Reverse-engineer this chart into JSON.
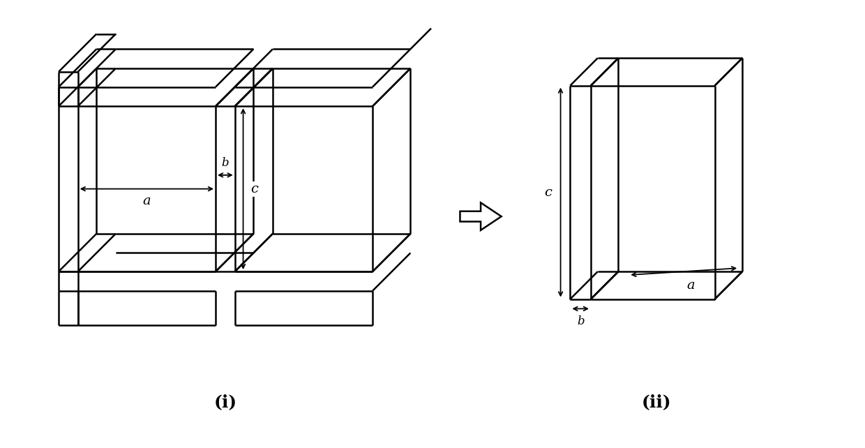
{
  "bg_color": "#ffffff",
  "line_color": "#000000",
  "lw": 1.8,
  "fig_width": 12.4,
  "fig_height": 6.42,
  "label_i": "(i)",
  "label_ii": "(ii)",
  "label_a": "a",
  "label_b": "b",
  "label_c": "c"
}
